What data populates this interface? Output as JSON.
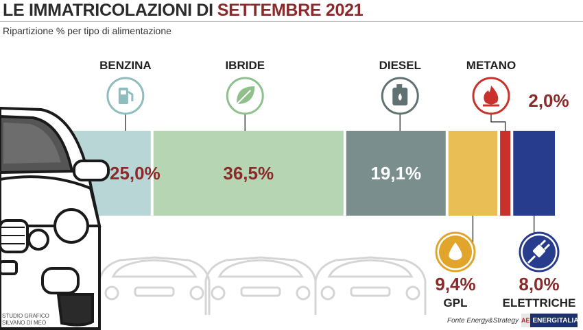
{
  "header": {
    "title_prefix": "LE IMMATRICOLAZIONI DI",
    "title_highlight": "SETTEMBRE 2021",
    "subtitle": "Ripartizione % per tipo di alimentazione"
  },
  "chart_data": {
    "type": "bar",
    "orientation": "stacked-horizontal",
    "title": "LE IMMATRICOLAZIONI DI SETTEMBRE 2021",
    "subtitle": "Ripartizione % per tipo di alimentazione",
    "unit": "%",
    "categories": [
      "BENZINA",
      "IBRIDE",
      "DIESEL",
      "GPL",
      "METANO",
      "ELETTRICHE"
    ],
    "values": [
      25.0,
      36.5,
      19.1,
      9.4,
      2.0,
      8.0
    ],
    "labels": [
      "25,0%",
      "36,5%",
      "19,1%",
      "9,4%",
      "2,0%",
      "8,0%"
    ],
    "colors": [
      "#b9d6d6",
      "#b5d5b3",
      "#7a8e8d",
      "#e9bf55",
      "#c8312c",
      "#283c8e"
    ],
    "icons": [
      "fuel-pump-icon",
      "leaf-icon",
      "jerrycan-icon",
      "oil-drop-icon",
      "flame-icon",
      "plug-icon"
    ]
  },
  "footer": {
    "credit_line1": "STUDIO GRAFICO",
    "credit_line2": "SILVANO DI MEO",
    "source": "Fonte Energy&Strategy",
    "brand_logo": "AE",
    "brand_name": "ENERGITALIA"
  }
}
